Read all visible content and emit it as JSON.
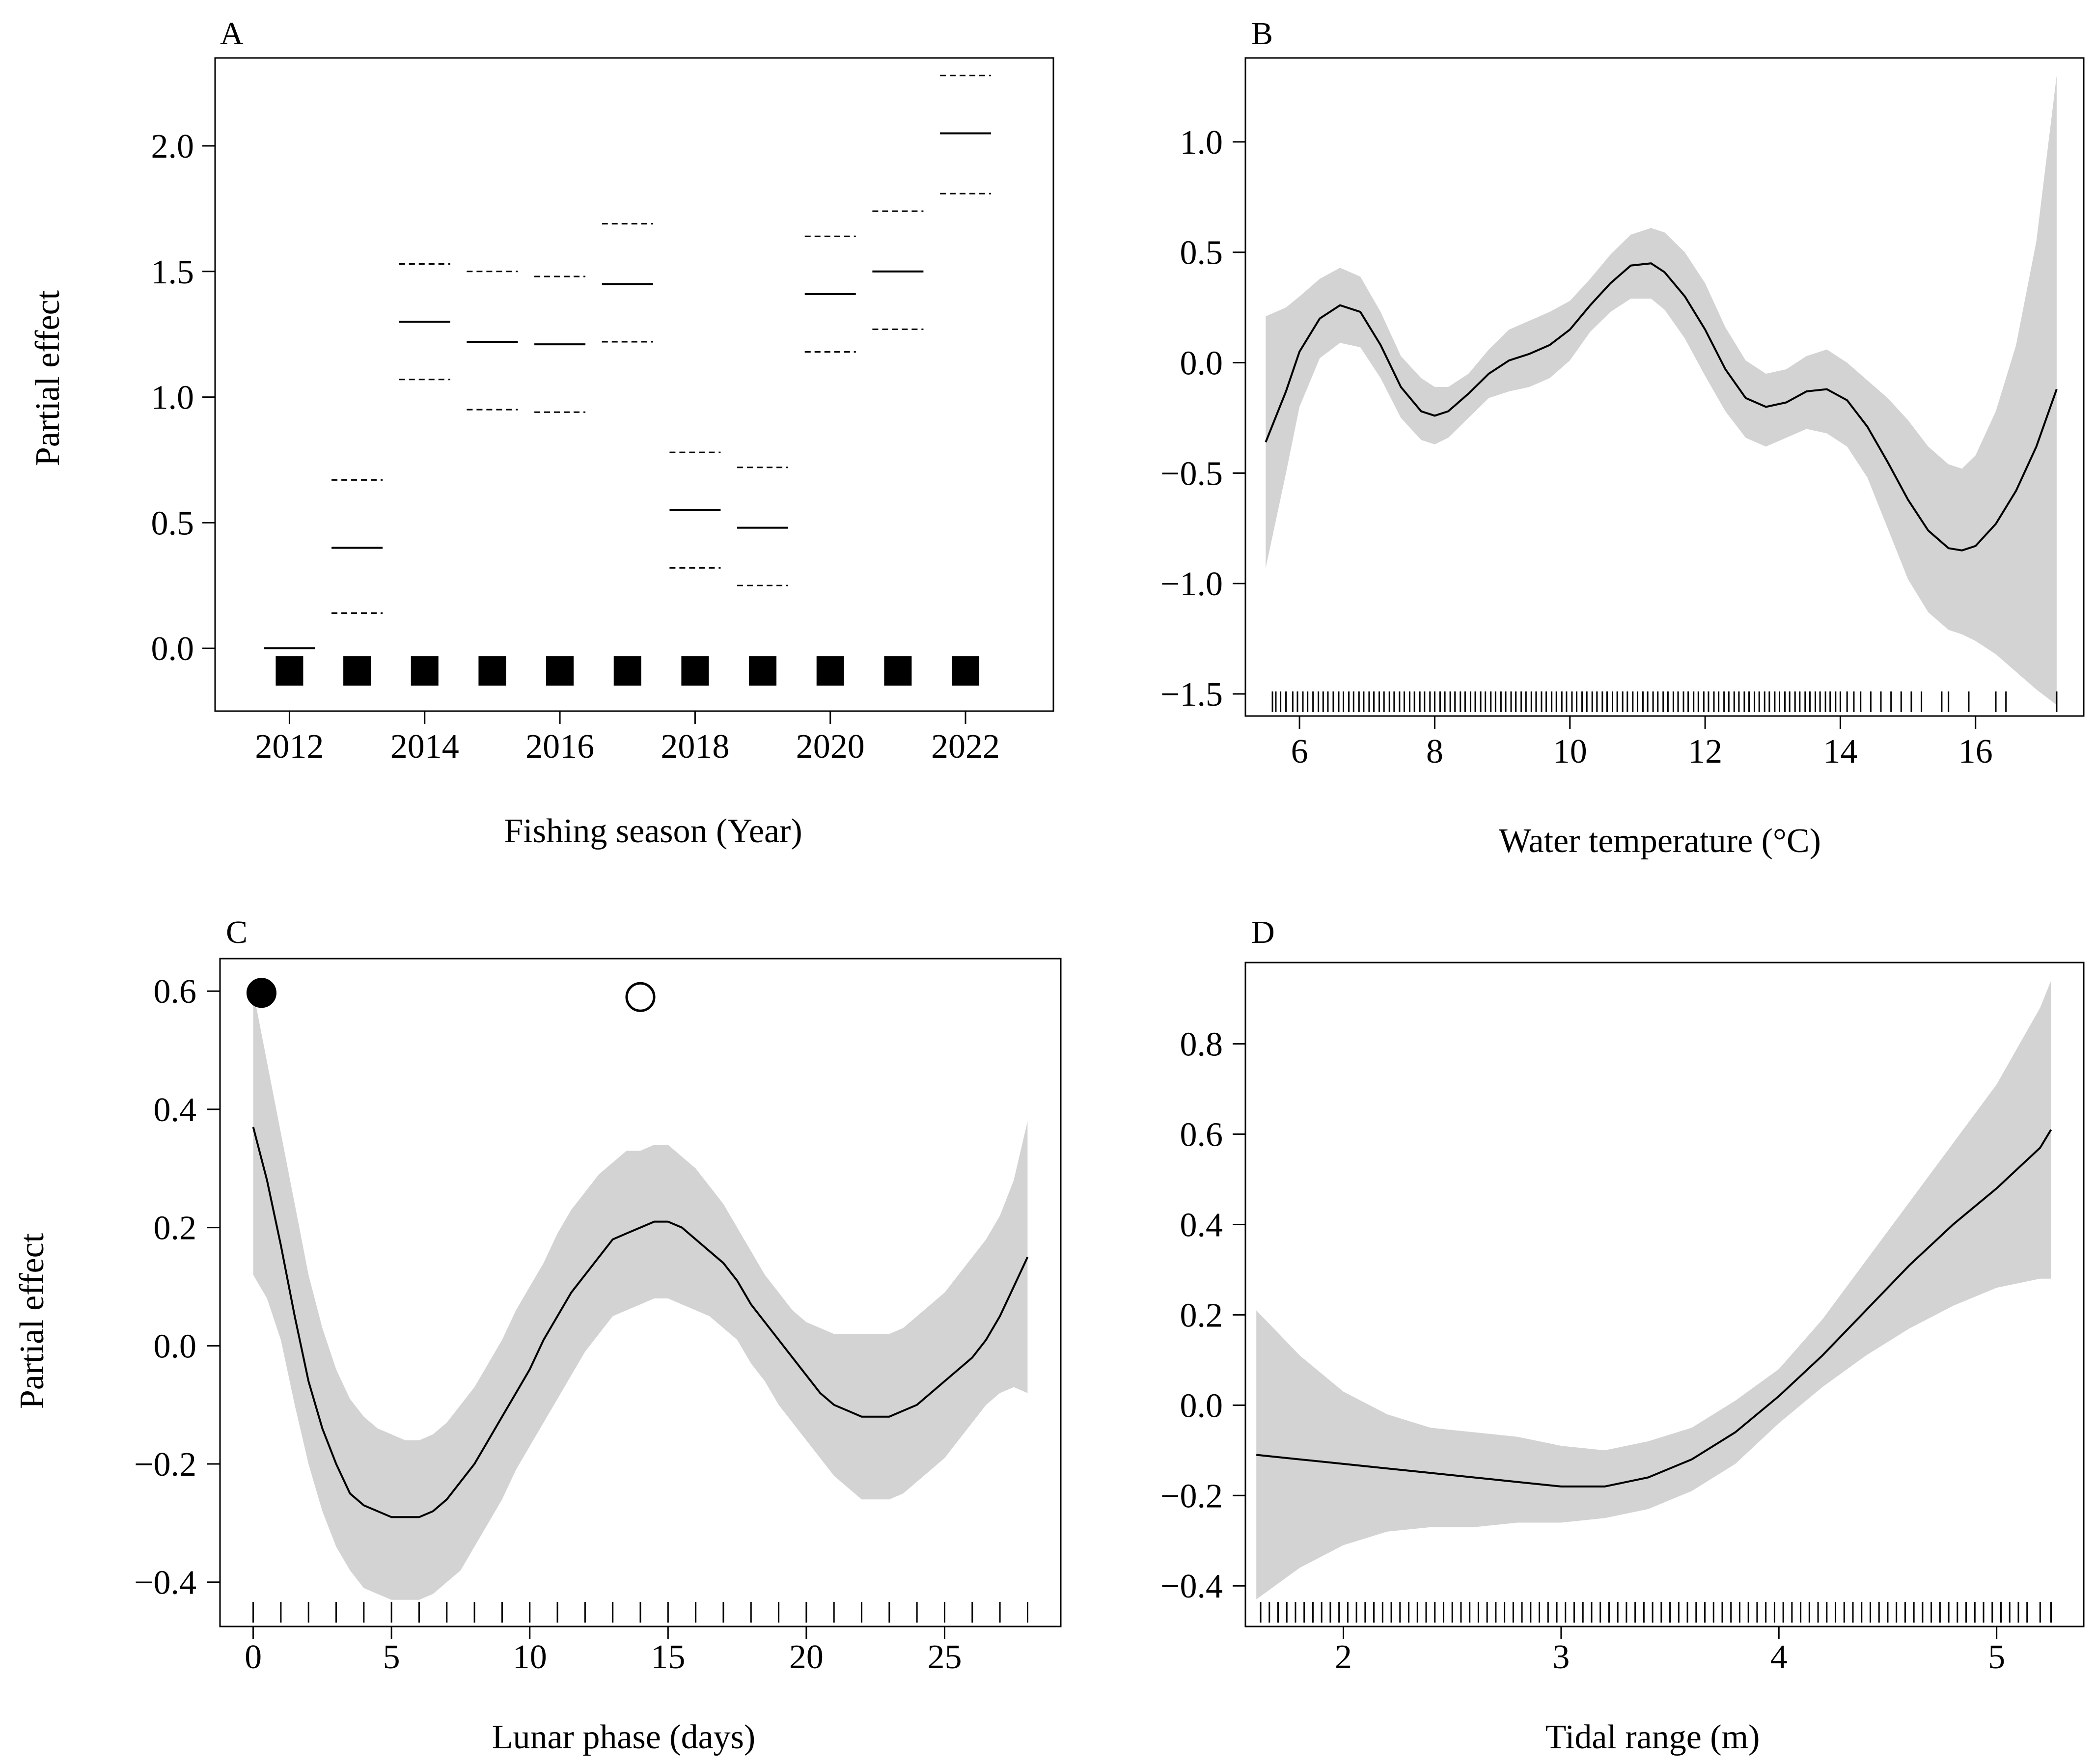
{
  "chart_data": [
    {
      "panel": "A",
      "type": "scatter",
      "xlabel": "Fishing season (Year)",
      "ylabel": "Partial effect",
      "xlim": [
        2010.9,
        2023.3
      ],
      "ylim": [
        -0.25,
        2.35
      ],
      "xticks": [
        2012,
        2014,
        2016,
        2018,
        2020,
        2022
      ],
      "yticks": [
        0.0,
        0.5,
        1.0,
        1.5,
        2.0
      ],
      "categories": [
        2012,
        2013,
        2014,
        2015,
        2016,
        2017,
        2018,
        2019,
        2020,
        2021,
        2022
      ],
      "series": [
        {
          "name": "",
          "values": [
            0.0,
            0.4,
            1.3,
            1.22,
            1.21,
            1.45,
            0.55,
            0.48,
            1.41,
            1.5,
            2.05
          ]
        },
        {
          "name": "",
          "values": [
            null,
            0.67,
            1.53,
            1.5,
            1.48,
            1.69,
            0.78,
            0.72,
            1.64,
            1.74,
            2.28
          ]
        },
        {
          "name": "",
          "values": [
            null,
            0.14,
            1.07,
            0.95,
            0.94,
            1.22,
            0.32,
            0.25,
            1.18,
            1.27,
            1.81
          ]
        }
      ],
      "rug_y": -0.09,
      "grid": false
    },
    {
      "panel": "B",
      "type": "line",
      "xlabel": "Water temperature (°C)",
      "ylabel": "",
      "xlim": [
        5.2,
        17.6
      ],
      "ylim": [
        -1.6,
        1.38
      ],
      "xticks": [
        6,
        8,
        10,
        12,
        14,
        16
      ],
      "yticks": [
        -1.5,
        -1.0,
        -0.5,
        0.0,
        0.5,
        1.0
      ],
      "x": [
        5.5,
        5.8,
        6.0,
        6.3,
        6.6,
        6.9,
        7.2,
        7.5,
        7.8,
        8.0,
        8.2,
        8.5,
        8.8,
        9.1,
        9.4,
        9.7,
        10.0,
        10.3,
        10.6,
        10.9,
        11.2,
        11.4,
        11.7,
        12.0,
        12.3,
        12.6,
        12.9,
        13.2,
        13.5,
        13.8,
        14.1,
        14.4,
        14.7,
        15.0,
        15.3,
        15.6,
        15.8,
        16.0,
        16.3,
        16.6,
        16.9,
        17.2
      ],
      "series": [
        {
          "name": "",
          "values": [
            -0.36,
            -0.13,
            0.05,
            0.2,
            0.26,
            0.23,
            0.08,
            -0.11,
            -0.22,
            -0.24,
            -0.22,
            -0.14,
            -0.05,
            0.01,
            0.04,
            0.08,
            0.15,
            0.26,
            0.36,
            0.44,
            0.45,
            0.41,
            0.3,
            0.15,
            -0.03,
            -0.16,
            -0.2,
            -0.18,
            -0.13,
            -0.12,
            -0.17,
            -0.29,
            -0.45,
            -0.62,
            -0.76,
            -0.84,
            -0.85,
            -0.83,
            -0.73,
            -0.58,
            -0.38,
            -0.12
          ]
        },
        {
          "name": "",
          "values": [
            0.21,
            0.25,
            0.3,
            0.38,
            0.43,
            0.39,
            0.23,
            0.03,
            -0.07,
            -0.11,
            -0.11,
            -0.05,
            0.06,
            0.15,
            0.19,
            0.23,
            0.28,
            0.38,
            0.49,
            0.58,
            0.61,
            0.59,
            0.5,
            0.36,
            0.16,
            0.01,
            -0.05,
            -0.03,
            0.03,
            0.06,
            0.0,
            -0.08,
            -0.16,
            -0.26,
            -0.38,
            -0.46,
            -0.48,
            -0.42,
            -0.22,
            0.08,
            0.55,
            1.3
          ]
        },
        {
          "name": "",
          "values": [
            -0.93,
            -0.5,
            -0.2,
            0.02,
            0.09,
            0.07,
            -0.07,
            -0.25,
            -0.35,
            -0.37,
            -0.34,
            -0.25,
            -0.16,
            -0.13,
            -0.11,
            -0.07,
            0.01,
            0.14,
            0.23,
            0.29,
            0.29,
            0.24,
            0.11,
            -0.06,
            -0.22,
            -0.34,
            -0.38,
            -0.34,
            -0.3,
            -0.32,
            -0.38,
            -0.52,
            -0.75,
            -0.98,
            -1.13,
            -1.21,
            -1.23,
            -1.26,
            -1.32,
            -1.4,
            -1.48,
            -1.55
          ]
        }
      ],
      "rug": [
        5.6,
        5.65,
        5.72,
        5.8,
        5.9,
        5.97,
        6.05,
        6.12,
        6.2,
        6.28,
        6.35,
        6.42,
        6.5,
        6.58,
        6.65,
        6.73,
        6.8,
        6.88,
        6.95,
        7.03,
        7.1,
        7.18,
        7.25,
        7.33,
        7.4,
        7.48,
        7.55,
        7.63,
        7.7,
        7.78,
        7.85,
        7.93,
        8.0,
        8.08,
        8.15,
        8.23,
        8.3,
        8.38,
        8.45,
        8.53,
        8.6,
        8.68,
        8.75,
        8.83,
        8.9,
        8.98,
        9.05,
        9.13,
        9.2,
        9.28,
        9.35,
        9.43,
        9.5,
        9.58,
        9.65,
        9.73,
        9.8,
        9.88,
        9.95,
        10.03,
        10.1,
        10.18,
        10.25,
        10.33,
        10.4,
        10.48,
        10.55,
        10.63,
        10.7,
        10.78,
        10.85,
        10.93,
        11.0,
        11.08,
        11.15,
        11.23,
        11.3,
        11.38,
        11.45,
        11.53,
        11.6,
        11.68,
        11.75,
        11.83,
        11.9,
        11.98,
        12.05,
        12.13,
        12.2,
        12.28,
        12.35,
        12.43,
        12.5,
        12.58,
        12.65,
        12.73,
        12.8,
        12.88,
        12.95,
        13.03,
        13.1,
        13.18,
        13.25,
        13.33,
        13.4,
        13.48,
        13.55,
        13.63,
        13.7,
        13.78,
        13.85,
        13.93,
        14.0,
        14.1,
        14.2,
        14.3,
        14.45,
        14.6,
        14.75,
        14.9,
        15.05,
        15.2,
        15.5,
        15.6,
        15.9,
        16.3,
        16.45,
        17.2
      ],
      "grid": false
    },
    {
      "panel": "C",
      "type": "line",
      "xlabel": "Lunar phase (days)",
      "ylabel": "Partial effect",
      "xlim": [
        -1.2,
        29.2
      ],
      "ylim": [
        -0.475,
        0.655
      ],
      "xticks": [
        0,
        5,
        10,
        15,
        20,
        25
      ],
      "yticks": [
        -0.4,
        -0.2,
        0.0,
        0.2,
        0.4,
        0.6
      ],
      "x": [
        0,
        0.5,
        1,
        1.5,
        2,
        2.5,
        3,
        3.5,
        4,
        4.5,
        5,
        5.5,
        6,
        6.5,
        7,
        7.5,
        8,
        8.5,
        9,
        9.5,
        10,
        10.5,
        11,
        11.5,
        12,
        12.5,
        13,
        13.5,
        14,
        14.5,
        15,
        15.5,
        16,
        16.5,
        17,
        17.5,
        18,
        18.5,
        19,
        19.5,
        20,
        20.5,
        21,
        21.5,
        22,
        22.5,
        23,
        23.5,
        24,
        24.5,
        25,
        25.5,
        26,
        26.5,
        27,
        27.5,
        28
      ],
      "series": [
        {
          "name": "",
          "values": [
            0.37,
            0.28,
            0.17,
            0.05,
            -0.06,
            -0.14,
            -0.2,
            -0.25,
            -0.27,
            -0.28,
            -0.29,
            -0.29,
            -0.29,
            -0.28,
            -0.26,
            -0.23,
            -0.2,
            -0.16,
            -0.12,
            -0.08,
            -0.04,
            0.01,
            0.05,
            0.09,
            0.12,
            0.15,
            0.18,
            0.19,
            0.2,
            0.21,
            0.21,
            0.2,
            0.18,
            0.16,
            0.14,
            0.11,
            0.07,
            0.04,
            0.01,
            -0.02,
            -0.05,
            -0.08,
            -0.1,
            -0.11,
            -0.12,
            -0.12,
            -0.12,
            -0.11,
            -0.1,
            -0.08,
            -0.06,
            -0.04,
            -0.02,
            0.01,
            0.05,
            0.1,
            0.15
          ]
        },
        {
          "name": "",
          "values": [
            0.6,
            0.48,
            0.36,
            0.24,
            0.12,
            0.03,
            -0.04,
            -0.09,
            -0.12,
            -0.14,
            -0.15,
            -0.16,
            -0.16,
            -0.15,
            -0.13,
            -0.1,
            -0.07,
            -0.03,
            0.01,
            0.06,
            0.1,
            0.14,
            0.19,
            0.23,
            0.26,
            0.29,
            0.31,
            0.33,
            0.33,
            0.34,
            0.34,
            0.32,
            0.3,
            0.27,
            0.24,
            0.2,
            0.16,
            0.12,
            0.09,
            0.06,
            0.04,
            0.03,
            0.02,
            0.02,
            0.02,
            0.02,
            0.02,
            0.03,
            0.05,
            0.07,
            0.09,
            0.12,
            0.15,
            0.18,
            0.22,
            0.28,
            0.38
          ]
        },
        {
          "name": "",
          "values": [
            0.12,
            0.08,
            0.01,
            -0.1,
            -0.2,
            -0.28,
            -0.34,
            -0.38,
            -0.41,
            -0.42,
            -0.43,
            -0.43,
            -0.43,
            -0.42,
            -0.4,
            -0.38,
            -0.34,
            -0.3,
            -0.26,
            -0.21,
            -0.17,
            -0.13,
            -0.09,
            -0.05,
            -0.01,
            0.02,
            0.05,
            0.06,
            0.07,
            0.08,
            0.08,
            0.07,
            0.06,
            0.05,
            0.03,
            0.01,
            -0.03,
            -0.06,
            -0.1,
            -0.13,
            -0.16,
            -0.19,
            -0.22,
            -0.24,
            -0.26,
            -0.26,
            -0.26,
            -0.25,
            -0.23,
            -0.21,
            -0.19,
            -0.16,
            -0.13,
            -0.1,
            -0.08,
            -0.07,
            -0.08
          ]
        }
      ],
      "rug": [
        0,
        1,
        2,
        3,
        4,
        5,
        6,
        7,
        8,
        9,
        10,
        11,
        12,
        13,
        14,
        15,
        16,
        17,
        18,
        19,
        20,
        21,
        22,
        23,
        24,
        25,
        26,
        27,
        28
      ],
      "moon_symbols": [
        {
          "name": "new-moon-symbol",
          "x": 0.3,
          "y": 0.597,
          "fill": "#000000"
        },
        {
          "name": "full-moon-symbol",
          "x": 14.0,
          "y": 0.59,
          "fill": "#ffffff"
        }
      ],
      "grid": false
    },
    {
      "panel": "D",
      "type": "line",
      "xlabel": "Tidal range (m)",
      "ylabel": "",
      "xlim": [
        1.55,
        5.4
      ],
      "ylim": [
        -0.49,
        0.98
      ],
      "xticks": [
        2,
        3,
        4,
        5
      ],
      "yticks": [
        -0.4,
        -0.2,
        0.0,
        0.2,
        0.4,
        0.6,
        0.8
      ],
      "x": [
        1.6,
        1.8,
        2.0,
        2.2,
        2.4,
        2.6,
        2.8,
        3.0,
        3.2,
        3.4,
        3.6,
        3.8,
        4.0,
        4.2,
        4.4,
        4.6,
        4.8,
        5.0,
        5.2,
        5.25
      ],
      "series": [
        {
          "name": "",
          "values": [
            -0.11,
            -0.12,
            -0.13,
            -0.14,
            -0.15,
            -0.16,
            -0.17,
            -0.18,
            -0.18,
            -0.16,
            -0.12,
            -0.06,
            0.02,
            0.11,
            0.21,
            0.31,
            0.4,
            0.48,
            0.57,
            0.61
          ]
        },
        {
          "name": "",
          "values": [
            0.21,
            0.11,
            0.03,
            -0.02,
            -0.05,
            -0.06,
            -0.07,
            -0.09,
            -0.1,
            -0.08,
            -0.05,
            0.01,
            0.08,
            0.19,
            0.32,
            0.45,
            0.58,
            0.71,
            0.88,
            0.94
          ]
        },
        {
          "name": "",
          "values": [
            -0.43,
            -0.36,
            -0.31,
            -0.28,
            -0.27,
            -0.27,
            -0.26,
            -0.26,
            -0.25,
            -0.23,
            -0.19,
            -0.13,
            -0.04,
            0.04,
            0.11,
            0.17,
            0.22,
            0.26,
            0.28,
            0.28
          ]
        }
      ],
      "rug": [
        1.62,
        1.66,
        1.7,
        1.74,
        1.78,
        1.82,
        1.86,
        1.9,
        1.94,
        1.98,
        2.02,
        2.06,
        2.1,
        2.14,
        2.18,
        2.22,
        2.26,
        2.3,
        2.34,
        2.38,
        2.42,
        2.46,
        2.5,
        2.54,
        2.58,
        2.62,
        2.66,
        2.7,
        2.74,
        2.78,
        2.82,
        2.86,
        2.9,
        2.94,
        2.98,
        3.02,
        3.06,
        3.1,
        3.14,
        3.18,
        3.22,
        3.26,
        3.3,
        3.34,
        3.38,
        3.42,
        3.46,
        3.5,
        3.54,
        3.58,
        3.62,
        3.66,
        3.7,
        3.74,
        3.78,
        3.82,
        3.86,
        3.9,
        3.94,
        3.98,
        4.02,
        4.06,
        4.1,
        4.14,
        4.18,
        4.22,
        4.26,
        4.3,
        4.34,
        4.38,
        4.42,
        4.46,
        4.5,
        4.54,
        4.58,
        4.62,
        4.66,
        4.7,
        4.74,
        4.78,
        4.82,
        4.86,
        4.9,
        4.94,
        4.98,
        5.02,
        5.06,
        5.1,
        5.14,
        5.2,
        5.25
      ],
      "grid": false
    }
  ],
  "colors": {
    "band": "#d3d3d3",
    "line": "#000000",
    "axis": "#000000"
  }
}
